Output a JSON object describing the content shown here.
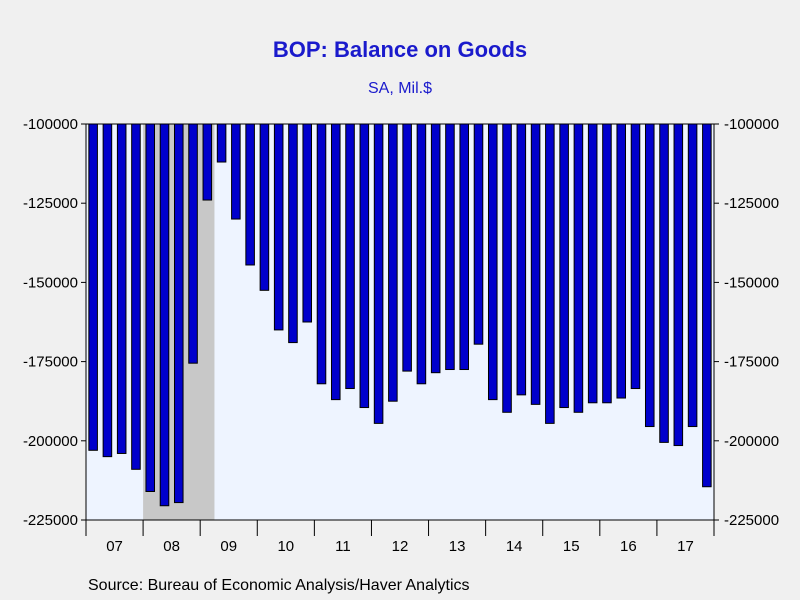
{
  "chart_data": {
    "type": "bar",
    "title": "BOP: Balance on Goods",
    "subtitle": "SA, Mil.$",
    "source": "Source:  Bureau of Economic Analysis/Haver Analytics",
    "ylim": [
      -225000,
      -100000
    ],
    "yticks": [
      "-100000",
      "-125000",
      "-150000",
      "-175000",
      "-200000",
      "-225000"
    ],
    "ytick_values": [
      -100000,
      -125000,
      -150000,
      -175000,
      -200000,
      -225000
    ],
    "x_labels": [
      "07",
      "08",
      "09",
      "10",
      "11",
      "12",
      "13",
      "14",
      "15",
      "16",
      "17"
    ],
    "grid": false,
    "bar_color": "#0000cc",
    "plot_background": "#eef4ff",
    "recession_color": "#c8c8c8",
    "recession_bars": [
      4,
      8
    ],
    "x_start_year": 2007,
    "bars_per_year": 2,
    "values": [
      -203000,
      -205000,
      -204000,
      -209000,
      -216000,
      -220500,
      -219500,
      -175500,
      -124000,
      -112000,
      -130000,
      -144500,
      -152500,
      -165000,
      -169000,
      -162500,
      -182000,
      -187000,
      -183500,
      -189500,
      -194500,
      -187500,
      -178000,
      -182000,
      -178500,
      -177500,
      -177500,
      -169500,
      -187000,
      -191000,
      -185500,
      -188500,
      -194500,
      -189500,
      -191000,
      -188000,
      -188000,
      -186500,
      -183500,
      -195500,
      -200500,
      -201500,
      -195500,
      -214500
    ]
  }
}
